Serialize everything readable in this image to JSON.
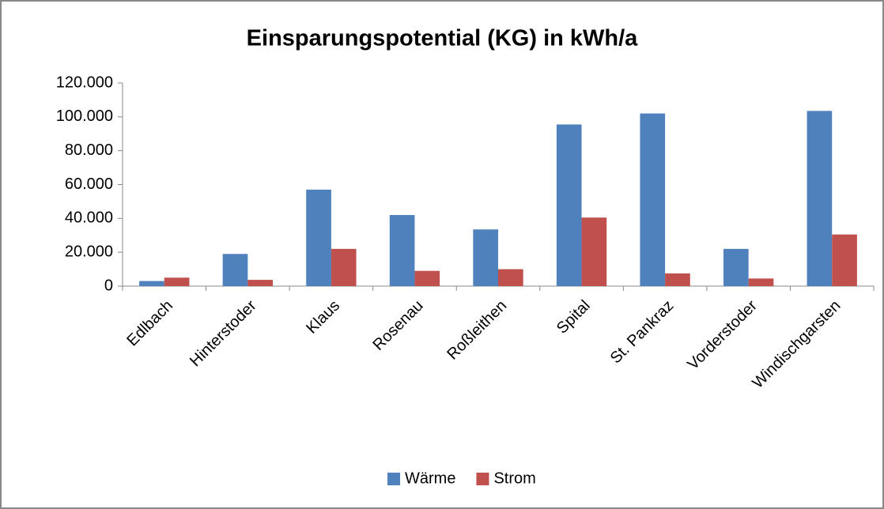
{
  "chart_data": {
    "type": "bar",
    "title": "Einsparungspotential (KG) in kWh/a",
    "categories": [
      "Edlbach",
      "Hinterstoder",
      "Klaus",
      "Rosenau",
      "Roßleithen",
      "Spital",
      "St. Pankraz",
      "Vorderstoder",
      "Windischgarsten"
    ],
    "series": [
      {
        "name": "Wärme",
        "color": "#4f81bd",
        "values": [
          3000,
          19000,
          57000,
          42000,
          33500,
          95500,
          102000,
          22000,
          103500
        ]
      },
      {
        "name": "Strom",
        "color": "#c0504d",
        "values": [
          5000,
          3700,
          22000,
          9000,
          10000,
          40500,
          7500,
          4500,
          30500
        ]
      }
    ],
    "ylim": [
      0,
      120000
    ],
    "yticks": [
      0,
      {
        "value": 20000,
        "label": "20.000"
      },
      {
        "value": 40000,
        "label": "40.000"
      },
      {
        "value": 60000,
        "label": "60.000"
      },
      {
        "value": 80000,
        "label": "80.000"
      },
      {
        "value": 100000,
        "label": "100.000"
      },
      {
        "value": 120000,
        "label": "120.000"
      }
    ],
    "grid": false,
    "legend": "bottom"
  }
}
